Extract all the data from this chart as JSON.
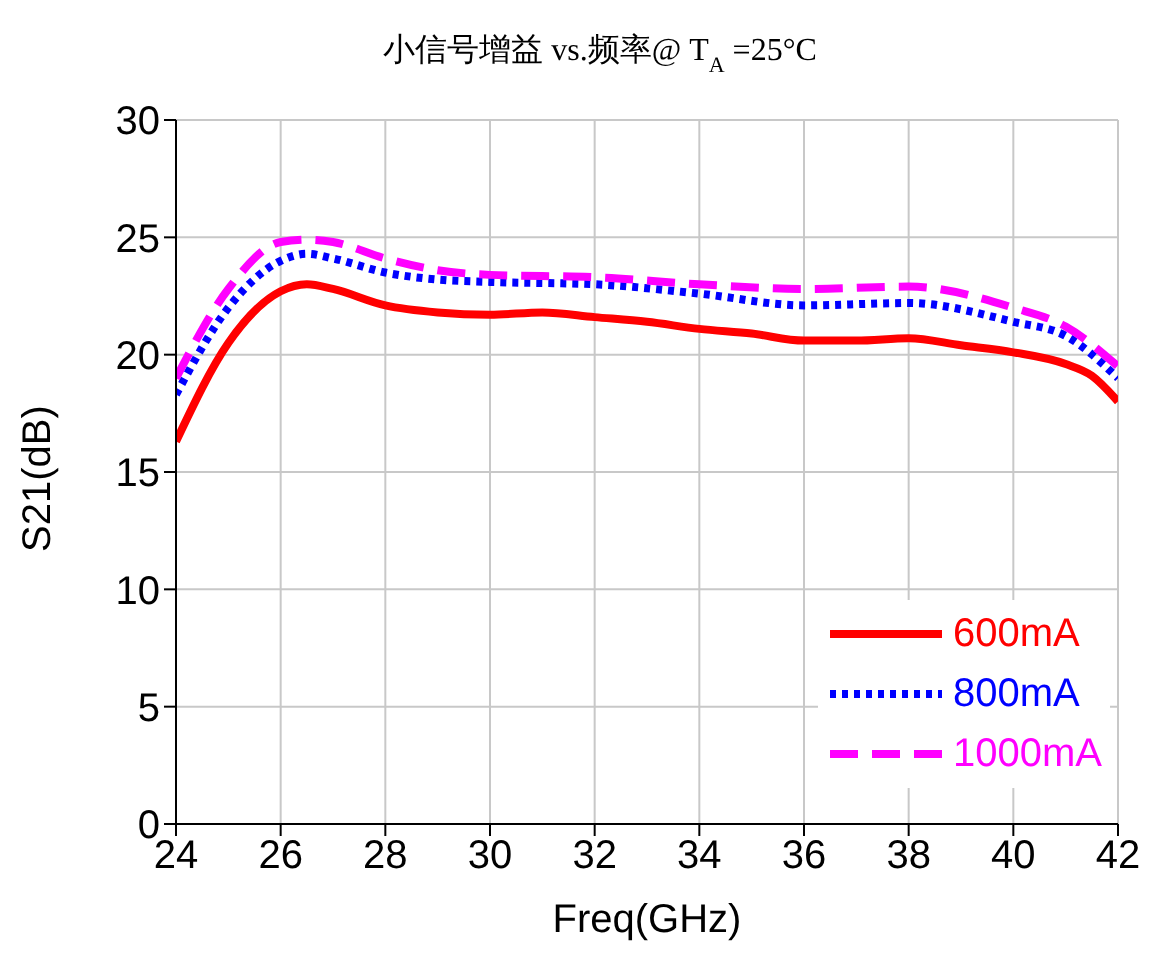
{
  "chart_data": {
    "type": "line",
    "title": "小信号增益 vs.频率@ T$_{A}$ =25°C",
    "xlabel": "Freq(GHz)",
    "ylabel": "S21(dB)",
    "xlim": [
      24,
      42
    ],
    "xticks": [
      24,
      26,
      28,
      30,
      32,
      34,
      36,
      38,
      40,
      42
    ],
    "ylim": [
      0,
      30
    ],
    "yticks": [
      0,
      5,
      10,
      15,
      20,
      25,
      30
    ],
    "grid": true,
    "legend": "bottom right",
    "marker": "none",
    "series": [
      {
        "name": "600mA",
        "color": "#ff0000",
        "line_style": "solid",
        "x": [
          24,
          25,
          26,
          26.5,
          27,
          28,
          29,
          30,
          31,
          32,
          33,
          34,
          35,
          36,
          37,
          38,
          39,
          40,
          41,
          41.5,
          42
        ],
        "values": [
          16.3,
          20.5,
          22.7,
          23.0,
          22.8,
          22.1,
          21.8,
          21.7,
          21.8,
          21.6,
          21.4,
          21.1,
          20.9,
          20.6,
          20.6,
          20.7,
          20.4,
          20.1,
          19.6,
          19.1,
          18.0
        ]
      },
      {
        "name": "800mA",
        "color": "#0000ff",
        "line_style": "dotted",
        "x": [
          24,
          25,
          26,
          26.5,
          27,
          28,
          29,
          30,
          32,
          34,
          36,
          38,
          40,
          41,
          42
        ],
        "values": [
          18.3,
          22.0,
          24.0,
          24.3,
          24.1,
          23.5,
          23.2,
          23.1,
          23.0,
          22.6,
          22.1,
          22.2,
          21.4,
          20.8,
          19.0
        ]
      },
      {
        "name": "1000mA",
        "color": "#ff00ff",
        "line_style": "dashed",
        "x": [
          24,
          25,
          26,
          26.5,
          27,
          28,
          29,
          30,
          32,
          34,
          36,
          38,
          40,
          41,
          42
        ],
        "values": [
          19.0,
          22.8,
          24.8,
          24.9,
          24.8,
          24.1,
          23.6,
          23.4,
          23.3,
          23.0,
          22.8,
          22.9,
          22.0,
          21.2,
          19.5
        ]
      }
    ]
  }
}
